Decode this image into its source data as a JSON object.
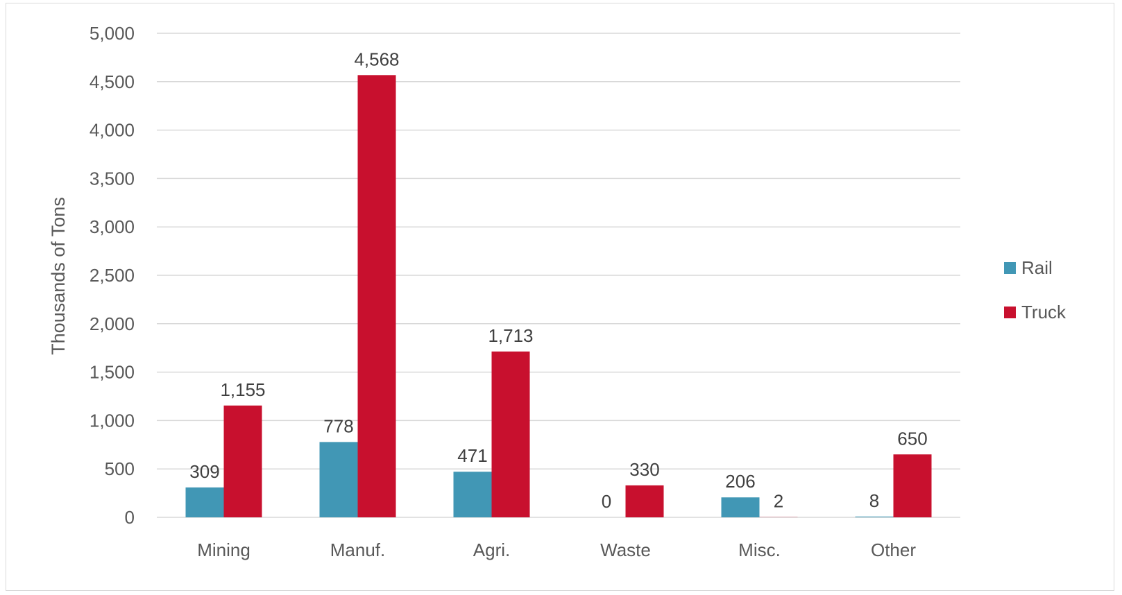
{
  "chart_data": {
    "type": "bar",
    "title": "",
    "xlabel": "",
    "ylabel": "Thousands of Tons",
    "ylim": [
      0,
      5000
    ],
    "yticks": [
      0,
      500,
      1000,
      1500,
      2000,
      2500,
      3000,
      3500,
      4000,
      4500,
      5000
    ],
    "ytick_labels": [
      "0",
      "500",
      "1,000",
      "1,500",
      "2,000",
      "2,500",
      "3,000",
      "3,500",
      "4,000",
      "4,500",
      "5,000"
    ],
    "grid": true,
    "legend_position": "right",
    "categories": [
      "Mining",
      "Manuf.",
      "Agri.",
      "Waste",
      "Misc.",
      "Other"
    ],
    "series": [
      {
        "name": "Rail",
        "color": "#4197b5",
        "values": [
          309,
          778,
          471,
          0,
          206,
          8
        ],
        "labels": [
          "309",
          "778",
          "471",
          "0",
          "206",
          "8"
        ]
      },
      {
        "name": "Truck",
        "color": "#c8102e",
        "values": [
          1155,
          4568,
          1713,
          330,
          2,
          650
        ],
        "labels": [
          "1,155",
          "4,568",
          "1,713",
          "330",
          "2",
          "650"
        ]
      }
    ]
  }
}
